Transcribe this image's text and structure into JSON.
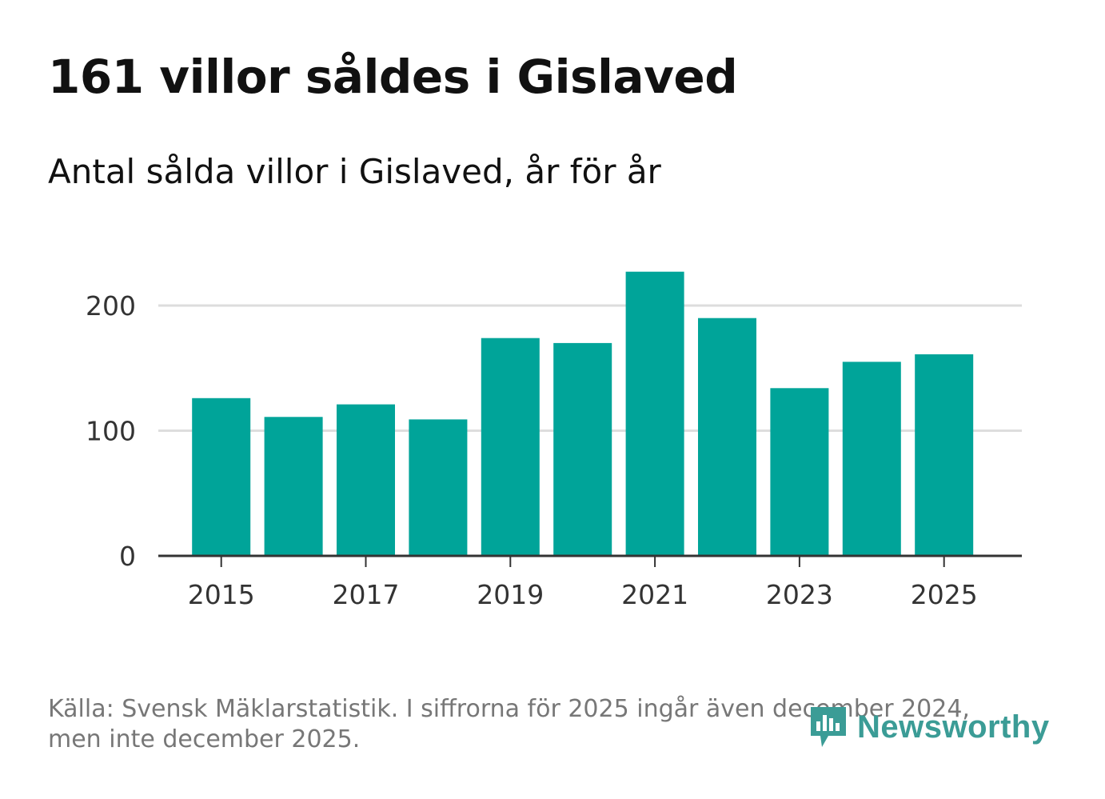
{
  "header": {
    "title": "161 villor såldes i Gislaved",
    "subtitle": "Antal sålda villor i Gislaved, år för år"
  },
  "footer": {
    "source_line1": "Källa: Svensk Mäklarstatistik. I siffrorna för 2025 ingår även december 2024,",
    "source_line2": "men inte december 2025."
  },
  "logo": {
    "text": "Newsworthy",
    "icon": "newsworthy-bar-chart-icon"
  },
  "colors": {
    "bar": "#00a499",
    "grid": "#dddddd",
    "axis": "#333333",
    "tick_text": "#333333",
    "logo": "#3b9c96"
  },
  "chart_data": {
    "type": "bar",
    "title": "161 villor såldes i Gislaved",
    "subtitle": "Antal sålda villor i Gislaved, år för år",
    "categories": [
      "2015",
      "2016",
      "2017",
      "2018",
      "2019",
      "2020",
      "2021",
      "2022",
      "2023",
      "2024",
      "2025"
    ],
    "values": [
      126,
      111,
      121,
      109,
      174,
      170,
      227,
      190,
      134,
      155,
      161
    ],
    "x_tick_labels": [
      "2015",
      "2017",
      "2019",
      "2021",
      "2023",
      "2025"
    ],
    "y_ticks": [
      0,
      100,
      200
    ],
    "y_tick_labels": [
      "0",
      "100",
      "200"
    ],
    "ylim": [
      0,
      240
    ],
    "xlabel": "",
    "ylabel": "",
    "grid": true
  }
}
